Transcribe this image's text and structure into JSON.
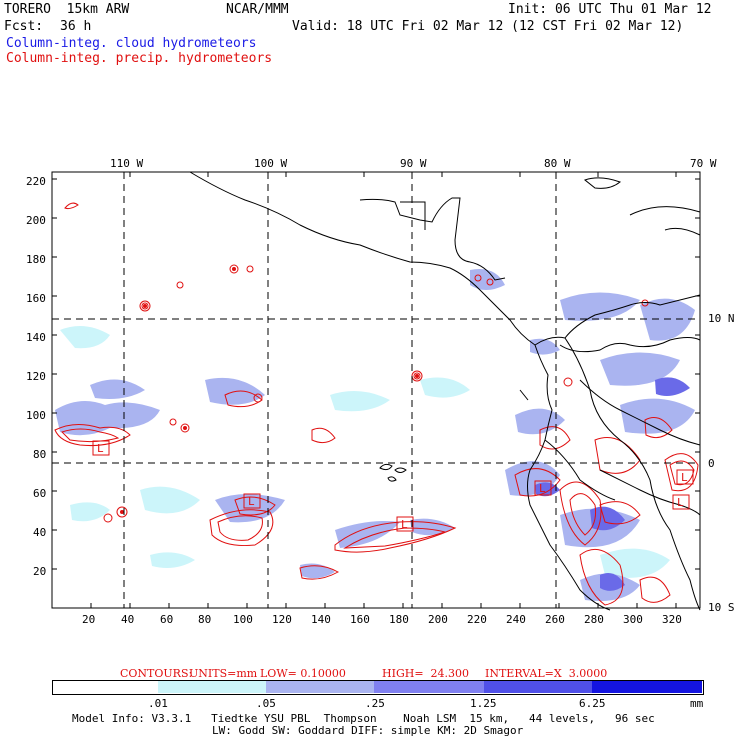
{
  "header": {
    "model": "TORERO  15km ARW",
    "org": "NCAR/MMM",
    "init": "Init: 06 UTC Thu 01 Mar 12",
    "fcst_label": "Fcst:",
    "fcst_hours": "36 h",
    "valid": "Valid: 18 UTC Fri 02 Mar 12 (12 CST Fri 02 Mar 12)",
    "legend_blue": "Column-integ. cloud hydrometeors",
    "legend_red": "Column-integ. precip. hydrometeors"
  },
  "colors": {
    "cloud_lightest": "#ccf5fa",
    "cloud_light": "#aab4f0",
    "cloud_mid": "#8080f0",
    "cloud_dark": "#5050e8",
    "cloud_darkest": "#1414e0",
    "precip": "#e01010",
    "coast": "#000000"
  },
  "map": {
    "lon_labels": [
      "110 W",
      "100 W",
      "90 W",
      "80 W",
      "70 W"
    ],
    "lat_labels": [
      "10 N",
      "0",
      "10 S"
    ],
    "y_ticks": [
      "220",
      "200",
      "180",
      "160",
      "140",
      "120",
      "100",
      "80",
      "60",
      "40",
      "20"
    ],
    "x_ticks": [
      "20",
      "40",
      "60",
      "80",
      "100",
      "120",
      "140",
      "160",
      "180",
      "200",
      "220",
      "240",
      "260",
      "280",
      "300",
      "320"
    ],
    "box_labels": [
      "L",
      "L",
      "L",
      "L",
      "L",
      "L"
    ]
  },
  "contours_caption": {
    "label": "CONTOURS:",
    "units": "UNITS=mm",
    "low": "LOW= 0.10000",
    "high": "HIGH=  24.300",
    "interval": "INTERVAL=X  3.0000"
  },
  "colorbar": {
    "labels": [
      ".01",
      ".05",
      ".25",
      "1.25",
      "6.25"
    ],
    "unit": "mm"
  },
  "footer": {
    "line1": "Model Info: V3.3.1   Tiedtke YSU PBL  Thompson    Noah LSM  15 km,   44 levels,   96 sec",
    "line2": "LW: Godd SW: Goddard DIFF: simple KM: 2D Smagor"
  }
}
